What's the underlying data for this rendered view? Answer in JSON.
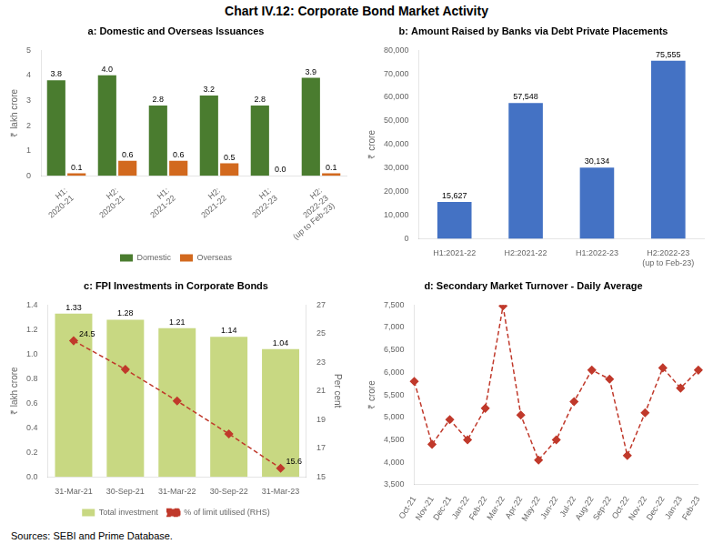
{
  "title": "Chart IV.12: Corporate Bond Market Activity",
  "annotations": [
    "Sources: SEBI and Prime Database."
  ],
  "chart_data": [
    {
      "type": "bar",
      "title": "a: Domestic and Overseas Issuances",
      "ylabel": "₹ lakh crore",
      "categories": [
        "H1:\n2020-21",
        "H2:\n2020-21",
        "H1:\n2021-22",
        "H2:\n2021-22",
        "H1:\n2022-23",
        "H2:\n2022-23\n(up to Feb-23)"
      ],
      "series": [
        {
          "name": "Domestic",
          "color": "#4a7c2f",
          "values": [
            3.8,
            4.0,
            2.8,
            3.2,
            2.8,
            3.9
          ],
          "value_labels": [
            "3.8",
            "4.0",
            "2.8",
            "3.2",
            "2.8",
            "3.9"
          ]
        },
        {
          "name": "Overseas",
          "color": "#d2691e",
          "values": [
            0.1,
            0.6,
            0.6,
            0.5,
            0.0,
            0.1
          ],
          "value_labels": [
            "0.1",
            "0.6",
            "0.6",
            "0.5",
            "0.0",
            "0.1"
          ]
        }
      ],
      "ylim": [
        0,
        5
      ],
      "yticks": [
        0,
        1,
        2,
        3,
        4,
        5
      ],
      "grid": false,
      "legend": "bottom",
      "data_labels": true
    },
    {
      "type": "bar",
      "title": "b: Amount Raised by Banks via Debt Private Placements",
      "ylabel": "₹ crore",
      "categories": [
        "H1:2021-22",
        "H2:2021-22",
        "H1:2022-23",
        "H2:2022-23\n(up to Feb-23)"
      ],
      "values": [
        15627,
        57548,
        30134,
        75555
      ],
      "value_labels": [
        "15,627",
        "57,548",
        "30,134",
        "75,555"
      ],
      "color": "#4472c4",
      "ylim": [
        0,
        80000
      ],
      "yticks": [
        0,
        {
          "value": 10000,
          "label": "10,000"
        },
        {
          "value": 20000,
          "label": "20,000"
        },
        {
          "value": 30000,
          "label": "30,000"
        },
        {
          "value": 40000,
          "label": "40,000"
        },
        {
          "value": 50000,
          "label": "50,000"
        },
        {
          "value": 60000,
          "label": "60,000"
        },
        {
          "value": 70000,
          "label": "70,000"
        },
        {
          "value": 80000,
          "label": "80,000"
        }
      ],
      "grid": false,
      "data_labels": true
    },
    {
      "type": "bar",
      "title": "c: FPI Investments in Corporate Bonds",
      "ylabel": "₹ lakh crore",
      "y2label": "Per cent",
      "categories": [
        "31-Mar-21",
        "30-Sep-21",
        "31-Mar-22",
        "30-Sep-22",
        "31-Mar-23"
      ],
      "series": [
        {
          "name": "Total investment",
          "type": "bar",
          "color": "#c8d882",
          "values": [
            1.33,
            1.28,
            1.21,
            1.14,
            1.04
          ]
        },
        {
          "name": "% of limit utilised (RHS)",
          "type": "line",
          "axis": "y2",
          "color": "#c0392b",
          "line_style": "dashed",
          "marker": "diamond",
          "values": [
            24.5,
            22.5,
            20.3,
            18.0,
            15.6
          ],
          "value_labels": [
            "24.5",
            null,
            null,
            null,
            "15.6"
          ]
        }
      ],
      "ylim": [
        0,
        1.4
      ],
      "yticks": [
        {
          "value": 0.0,
          "label": "0.0"
        },
        0.2,
        0.4,
        0.6,
        0.8,
        {
          "value": 1.0,
          "label": "1.0"
        },
        1.2,
        1.4
      ],
      "y2lim": [
        15,
        27
      ],
      "y2ticks": [
        15,
        17,
        19,
        21,
        23,
        25,
        27
      ],
      "grid": false,
      "legend": "bottom",
      "data_labels": true
    },
    {
      "type": "line",
      "title": "d: Secondary Market Turnover - Daily Average",
      "ylabel": "₹ crore",
      "categories": [
        "Oct-21",
        "Nov-21",
        "Dec-21",
        "Jan-22",
        "Feb-22",
        "Mar-22",
        "Apr-22",
        "May-22",
        "Jun-22",
        "Jul-22",
        "Aug-22",
        "Sep-22",
        "Oct-22",
        "Nov-22",
        "Dec-22",
        "Jan-23",
        "Feb-23"
      ],
      "values": [
        5800,
        4400,
        4950,
        4500,
        5200,
        7480,
        5050,
        4050,
        4500,
        5350,
        6050,
        5850,
        4150,
        5100,
        6100,
        5650,
        6050
      ],
      "color": "#c0392b",
      "line_style": "dashed",
      "marker": "diamond",
      "ylim": [
        3500,
        7500
      ],
      "yticks": [
        {
          "value": 3500,
          "label": "3,500"
        },
        {
          "value": 4000,
          "label": "4,000"
        },
        {
          "value": 4500,
          "label": "4,500"
        },
        {
          "value": 5000,
          "label": "5,000"
        },
        {
          "value": 5500,
          "label": "5,500"
        },
        {
          "value": 6000,
          "label": "6,000"
        },
        {
          "value": 6500,
          "label": "6,500"
        },
        {
          "value": 7000,
          "label": "7,000"
        },
        {
          "value": 7500,
          "label": "7,500"
        }
      ],
      "grid": false
    }
  ]
}
